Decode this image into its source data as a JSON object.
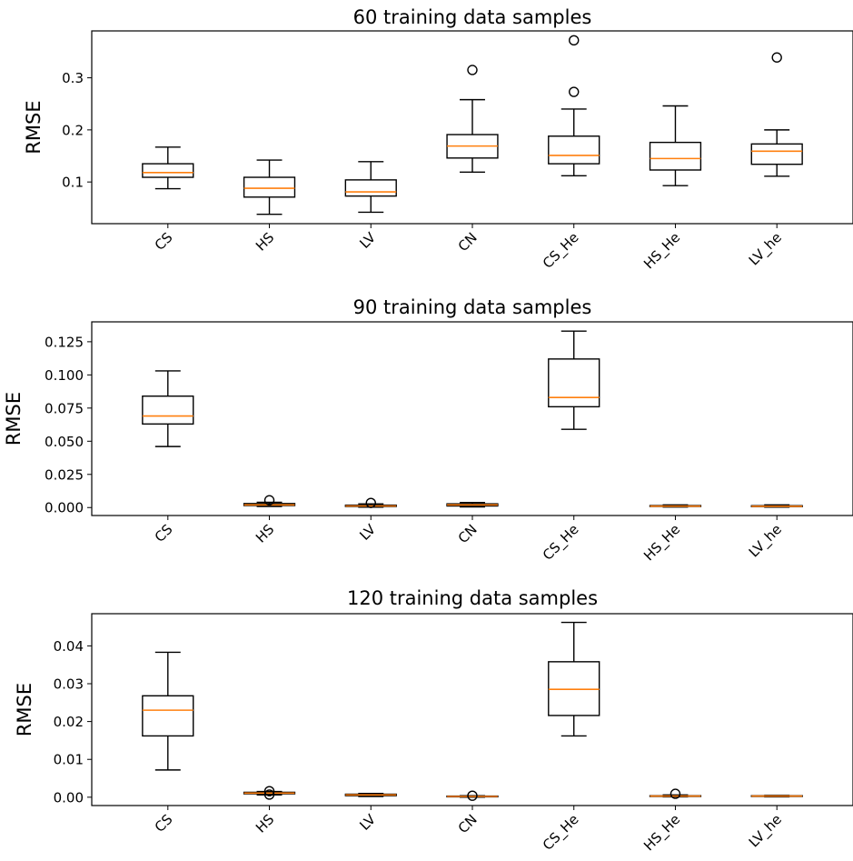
{
  "chart_data": [
    {
      "type": "box",
      "title": "60 training data samples",
      "ylabel": "RMSE",
      "xlabel": "",
      "categories": [
        "CS",
        "HS",
        "LV",
        "CN",
        "CS_He",
        "HS_He",
        "LV_he"
      ],
      "yticks": [
        "0.1",
        "0.2",
        "0.3"
      ],
      "ytick_values": [
        0.1,
        0.2,
        0.3
      ],
      "ylim": [
        0.02,
        0.39
      ],
      "grid": false,
      "boxes": [
        {
          "whislo": 0.087,
          "q1": 0.109,
          "med": 0.118,
          "q3": 0.135,
          "whishi": 0.167,
          "fliers": []
        },
        {
          "whislo": 0.038,
          "q1": 0.071,
          "med": 0.088,
          "q3": 0.109,
          "whishi": 0.142,
          "fliers": []
        },
        {
          "whislo": 0.042,
          "q1": 0.073,
          "med": 0.081,
          "q3": 0.104,
          "whishi": 0.139,
          "fliers": []
        },
        {
          "whislo": 0.119,
          "q1": 0.146,
          "med": 0.169,
          "q3": 0.191,
          "whishi": 0.258,
          "fliers": [
            0.315
          ]
        },
        {
          "whislo": 0.112,
          "q1": 0.135,
          "med": 0.151,
          "q3": 0.188,
          "whishi": 0.24,
          "fliers": [
            0.273,
            0.372
          ]
        },
        {
          "whislo": 0.093,
          "q1": 0.123,
          "med": 0.145,
          "q3": 0.176,
          "whishi": 0.246,
          "fliers": []
        },
        {
          "whislo": 0.111,
          "q1": 0.134,
          "med": 0.159,
          "q3": 0.173,
          "whishi": 0.2,
          "fliers": [
            0.339
          ]
        }
      ]
    },
    {
      "type": "box",
      "title": "90 training data samples",
      "ylabel": "RMSE",
      "xlabel": "",
      "categories": [
        "CS",
        "HS",
        "LV",
        "CN",
        "CS_He",
        "HS_He",
        "LV_he"
      ],
      "yticks": [
        "0.000",
        "0.025",
        "0.050",
        "0.075",
        "0.100",
        "0.125"
      ],
      "ytick_values": [
        0.0,
        0.025,
        0.05,
        0.075,
        0.1,
        0.125
      ],
      "ylim": [
        -0.006,
        0.14
      ],
      "grid": false,
      "boxes": [
        {
          "whislo": 0.046,
          "q1": 0.063,
          "med": 0.069,
          "q3": 0.084,
          "whishi": 0.103,
          "fliers": []
        },
        {
          "whislo": 0.0008,
          "q1": 0.0015,
          "med": 0.002,
          "q3": 0.003,
          "whishi": 0.004,
          "fliers": [
            0.0055
          ]
        },
        {
          "whislo": 0.0003,
          "q1": 0.0008,
          "med": 0.0012,
          "q3": 0.0018,
          "whishi": 0.0028,
          "fliers": [
            0.0035
          ]
        },
        {
          "whislo": 0.0005,
          "q1": 0.0012,
          "med": 0.002,
          "q3": 0.0028,
          "whishi": 0.0038,
          "fliers": []
        },
        {
          "whislo": 0.059,
          "q1": 0.076,
          "med": 0.083,
          "q3": 0.112,
          "whishi": 0.133,
          "fliers": []
        },
        {
          "whislo": 0.0004,
          "q1": 0.0008,
          "med": 0.0011,
          "q3": 0.0015,
          "whishi": 0.002,
          "fliers": []
        },
        {
          "whislo": 0.0003,
          "q1": 0.0007,
          "med": 0.001,
          "q3": 0.0014,
          "whishi": 0.002,
          "fliers": []
        }
      ]
    },
    {
      "type": "box",
      "title": "120 training data samples",
      "ylabel": "RMSE",
      "xlabel": "",
      "categories": [
        "CS",
        "HS",
        "LV",
        "CN",
        "CS_He",
        "HS_He",
        "LV_he"
      ],
      "yticks": [
        "0.00",
        "0.01",
        "0.02",
        "0.03",
        "0.04"
      ],
      "ytick_values": [
        0.0,
        0.01,
        0.02,
        0.03,
        0.04
      ],
      "ylim": [
        -0.0022,
        0.0485
      ],
      "grid": false,
      "boxes": [
        {
          "whislo": 0.0072,
          "q1": 0.0162,
          "med": 0.023,
          "q3": 0.0268,
          "whishi": 0.0383,
          "fliers": []
        },
        {
          "whislo": 0.0006,
          "q1": 0.0009,
          "med": 0.0011,
          "q3": 0.0013,
          "whishi": 0.0015,
          "fliers": [
            0.0007,
            0.0016
          ]
        },
        {
          "whislo": 0.0002,
          "q1": 0.0004,
          "med": 0.0006,
          "q3": 0.0008,
          "whishi": 0.001,
          "fliers": []
        },
        {
          "whislo": 0.0,
          "q1": 0.0001,
          "med": 0.0002,
          "q3": 0.0003,
          "whishi": 0.0004,
          "fliers": [
            0.0004
          ]
        },
        {
          "whislo": 0.0162,
          "q1": 0.0216,
          "med": 0.0285,
          "q3": 0.0358,
          "whishi": 0.0462,
          "fliers": []
        },
        {
          "whislo": 0.0001,
          "q1": 0.0002,
          "med": 0.0003,
          "q3": 0.0004,
          "whishi": 0.0006,
          "fliers": [
            0.0009
          ]
        },
        {
          "whislo": 0.0001,
          "q1": 0.0002,
          "med": 0.0003,
          "q3": 0.0004,
          "whishi": 0.0005,
          "fliers": []
        }
      ]
    }
  ]
}
